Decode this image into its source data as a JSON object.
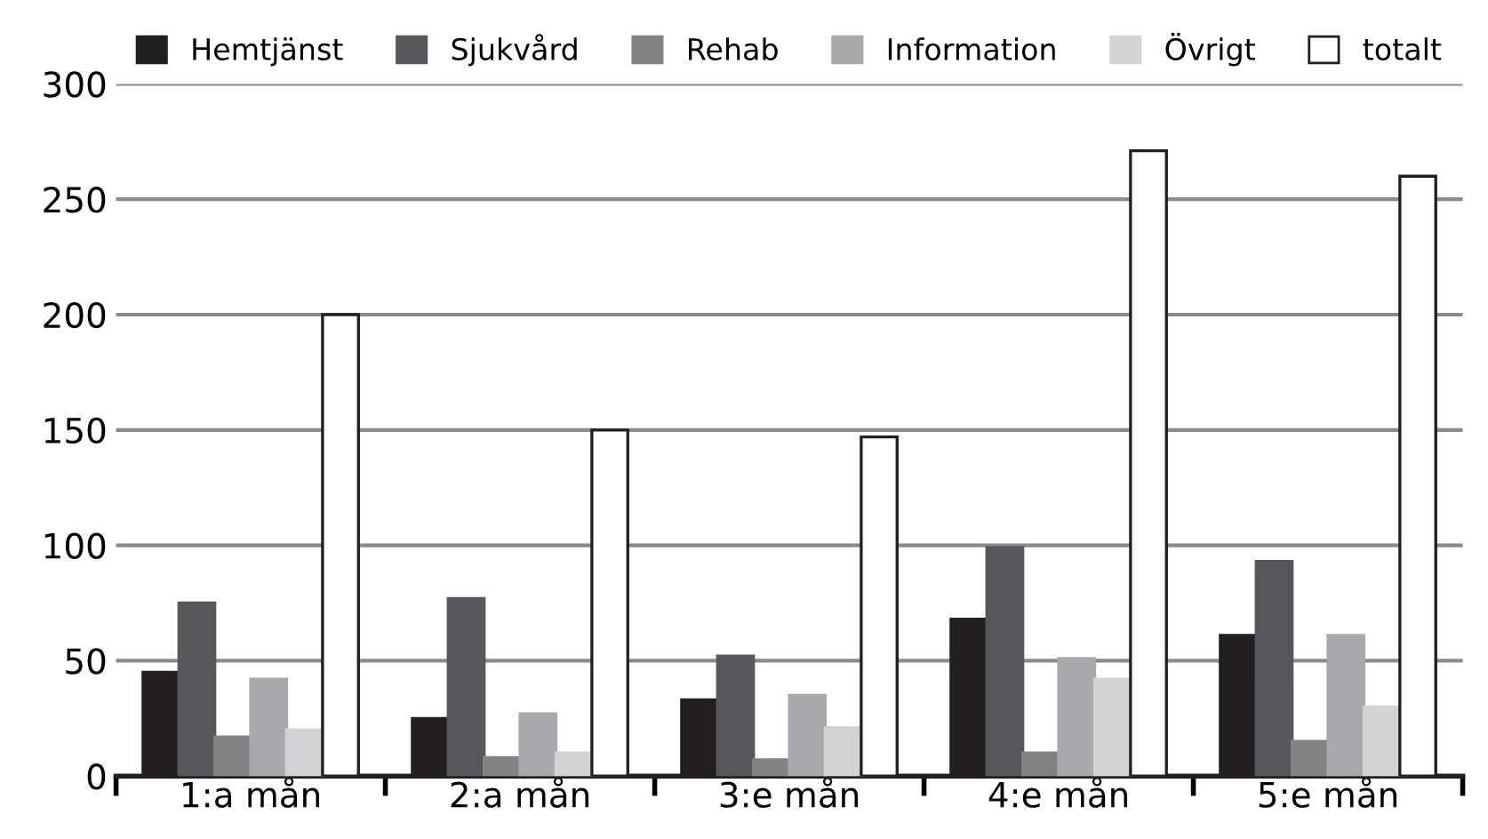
{
  "chart_data": {
    "type": "bar",
    "categories": [
      "1:a mån",
      "2:a mån",
      "3:e mån",
      "4:e mån",
      "5:e mån"
    ],
    "series": [
      {
        "name": "Hemtjänst",
        "color": "#231f1e",
        "values": [
          45,
          25,
          33,
          68,
          61
        ]
      },
      {
        "name": "Sjukvård",
        "color": "#56575b",
        "values": [
          75,
          77,
          52,
          99,
          93
        ]
      },
      {
        "name": "Rehab",
        "color": "#828384",
        "values": [
          17,
          8,
          7,
          10,
          15
        ]
      },
      {
        "name": "Information",
        "color": "#a8a9ac",
        "values": [
          42,
          27,
          35,
          51,
          61
        ]
      },
      {
        "name": "Övrigt",
        "color": "#d2d3d5",
        "values": [
          20,
          10,
          21,
          42,
          30
        ]
      },
      {
        "name": "totalt",
        "color": "#ffffff",
        "values": [
          200,
          150,
          147,
          271,
          260
        ]
      }
    ],
    "ylim": [
      0,
      300
    ],
    "yticks": [
      0,
      50,
      100,
      150,
      200,
      250,
      300
    ],
    "grid": "y",
    "legend": "top"
  }
}
